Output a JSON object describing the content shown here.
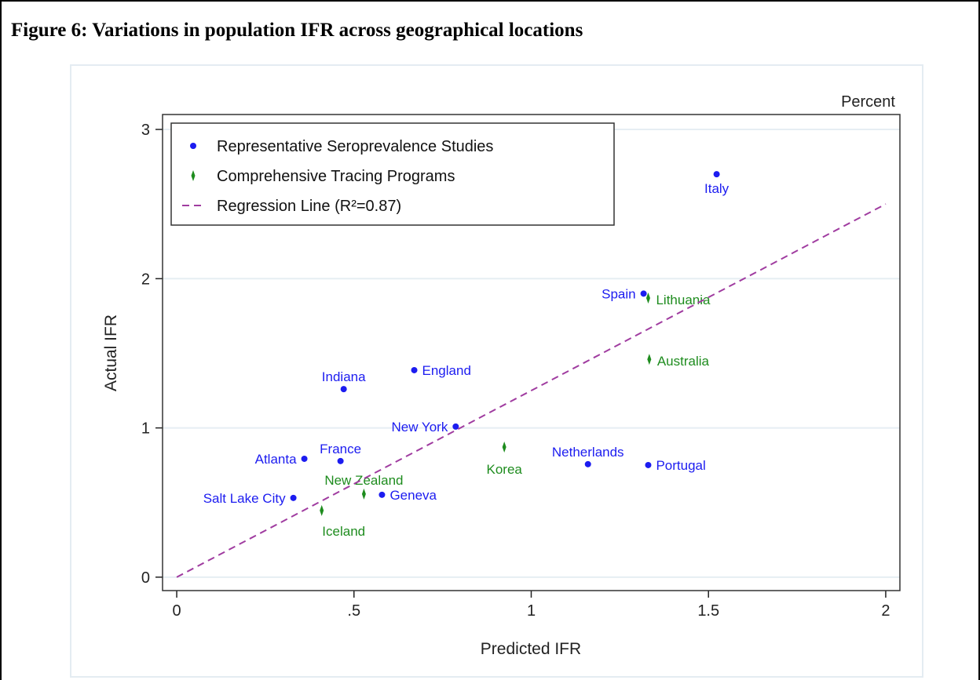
{
  "chart_data": {
    "type": "scatter",
    "title": "Figure 6: Variations in population IFR across geographical locations",
    "annotation": "Percent",
    "x_label": "Predicted IFR",
    "y_label": "Actual IFR",
    "xlim": [
      -0.04,
      2.04
    ],
    "ylim": [
      -0.09,
      3.1
    ],
    "xticks": [
      0,
      {
        "value": 0.5,
        "label": ".5"
      },
      1,
      1.5,
      2
    ],
    "yticks": [
      0,
      1,
      2,
      3
    ],
    "grid": true,
    "legend": "upper left",
    "series": [
      {
        "name": "Representative Seroprevalence Studies",
        "color": "#1c1cf0",
        "marker": "circle",
        "labels": [
          "Italy",
          "Spain",
          "England",
          "Indiana",
          "New York",
          "Atlanta",
          "France",
          "Netherlands",
          "Portugal",
          "Salt Lake City",
          "Geneva"
        ],
        "x": [
          1.523,
          1.317,
          0.67,
          0.471,
          0.787,
          0.36,
          0.462,
          1.16,
          1.33,
          0.329,
          0.579
        ],
        "values": [
          2.7,
          1.9,
          1.387,
          1.26,
          1.009,
          0.793,
          0.778,
          0.757,
          0.751,
          0.531,
          0.552
        ]
      },
      {
        "name": "Comprehensive Tracing Programs",
        "color": "#1e8c1e",
        "marker": "spike",
        "labels": [
          "Lithuania",
          "Australia",
          "Korea",
          "New Zealand",
          "Iceland"
        ],
        "x": [
          1.33,
          1.333,
          0.924,
          0.528,
          0.409
        ],
        "values": [
          1.87,
          1.46,
          0.872,
          0.557,
          0.447
        ]
      },
      {
        "name": "Regression Line (R²=0.87)",
        "color": "#a03ca0",
        "marker": "dashed-line",
        "x": [
          0,
          2
        ],
        "values": [
          0,
          2.5
        ]
      }
    ]
  }
}
